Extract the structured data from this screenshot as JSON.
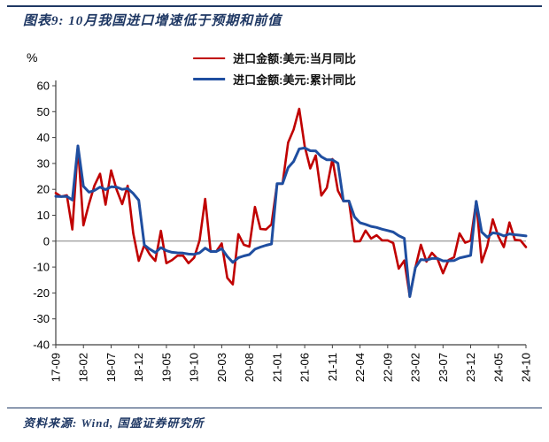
{
  "title": "图表9: 10月我国进口增速低于预期和前值",
  "source": "资料来源: Wind, 国盛证券研究所",
  "colors": {
    "accent_navy": "#1f3864",
    "red_line": "#c00000",
    "blue_line": "#1f4ea0",
    "zero_line": "#808080",
    "axis": "#404040"
  },
  "chart_data": {
    "type": "line",
    "title": "图表9: 10月我国进口增速低于预期和前值",
    "xlabel": "",
    "ylabel": "%",
    "ylim": [
      -40,
      60
    ],
    "ytick_step": 10,
    "grid": "zero-line-only",
    "legend_position": "top-center",
    "xtick_labels": [
      "17-09",
      "18-02",
      "18-07",
      "18-12",
      "19-05",
      "19-10",
      "20-03",
      "20-08",
      "21-01",
      "21-06",
      "21-11",
      "22-04",
      "22-09",
      "23-02",
      "23-07",
      "23-12",
      "24-05",
      "24-10"
    ],
    "x_months": [
      "17-09",
      "17-10",
      "17-11",
      "17-12",
      "18-01",
      "18-02",
      "18-03",
      "18-04",
      "18-05",
      "18-06",
      "18-07",
      "18-08",
      "18-09",
      "18-10",
      "18-11",
      "18-12",
      "19-01",
      "19-02",
      "19-03",
      "19-04",
      "19-05",
      "19-06",
      "19-07",
      "19-08",
      "19-09",
      "19-10",
      "19-11",
      "19-12",
      "20-01",
      "20-02",
      "20-03",
      "20-04",
      "20-05",
      "20-06",
      "20-07",
      "20-08",
      "20-09",
      "20-10",
      "20-11",
      "20-12",
      "21-01",
      "21-02",
      "21-03",
      "21-04",
      "21-05",
      "21-06",
      "21-07",
      "21-08",
      "21-09",
      "21-10",
      "21-11",
      "21-12",
      "22-01",
      "22-02",
      "22-03",
      "22-04",
      "22-05",
      "22-06",
      "22-07",
      "22-08",
      "22-09",
      "22-10",
      "22-11",
      "22-12",
      "23-01",
      "23-02",
      "23-03",
      "23-04",
      "23-05",
      "23-06",
      "23-07",
      "23-08",
      "23-09",
      "23-10",
      "23-11",
      "23-12",
      "24-01",
      "24-02",
      "24-03",
      "24-04",
      "24-05",
      "24-06",
      "24-07",
      "24-08",
      "24-09",
      "24-10"
    ],
    "series": [
      {
        "name": "进口金额:美元:当月同比",
        "color": "#c00000",
        "width": 2.6,
        "values": [
          18.6,
          17.2,
          17.7,
          4.5,
          36.8,
          6.1,
          14.4,
          21.5,
          26.0,
          14.1,
          27.3,
          19.9,
          14.3,
          21.4,
          3.0,
          -7.6,
          -1.5,
          -5.2,
          -7.6,
          4.0,
          -8.5,
          -7.3,
          -5.6,
          -5.6,
          -8.5,
          -6.4,
          0.3,
          16.3,
          -4.0,
          -4.0,
          -0.9,
          -14.2,
          -16.7,
          2.7,
          -1.4,
          -2.1,
          13.2,
          4.7,
          4.5,
          6.5,
          22.2,
          22.2,
          38.1,
          43.1,
          51.1,
          36.7,
          28.1,
          33.1,
          17.6,
          20.6,
          31.7,
          19.5,
          15.5,
          15.5,
          -0.1,
          0.0,
          4.1,
          1.0,
          2.3,
          0.3,
          0.3,
          -0.7,
          -10.6,
          -7.5,
          -21.4,
          -10.2,
          -1.4,
          -7.9,
          -4.5,
          -6.8,
          -12.4,
          -7.3,
          -6.2,
          3.0,
          -0.6,
          0.2,
          15.4,
          -8.2,
          -1.9,
          8.4,
          1.8,
          -2.3,
          7.2,
          0.5,
          0.3,
          -2.3
        ]
      },
      {
        "name": "进口金额:美元:累计同比",
        "color": "#1f4ea0",
        "width": 3,
        "values": [
          17.3,
          17.2,
          17.3,
          15.9,
          36.8,
          21.2,
          18.9,
          19.6,
          20.9,
          19.9,
          21.0,
          20.9,
          20.0,
          20.3,
          18.4,
          15.8,
          -1.5,
          -3.1,
          -4.4,
          -2.5,
          -3.7,
          -4.3,
          -4.5,
          -4.6,
          -5.0,
          -5.1,
          -4.5,
          -2.7,
          -4.0,
          -4.0,
          -2.9,
          -5.9,
          -8.2,
          -6.4,
          -5.7,
          -5.2,
          -3.1,
          -2.3,
          -1.6,
          -1.1,
          22.2,
          22.2,
          28.4,
          30.8,
          35.6,
          36.0,
          34.9,
          34.8,
          32.6,
          31.4,
          31.4,
          30.1,
          15.5,
          15.5,
          9.4,
          7.1,
          6.5,
          5.7,
          5.3,
          4.6,
          4.1,
          3.5,
          2.1,
          1.1,
          -21.4,
          -10.2,
          -7.1,
          -7.3,
          -6.7,
          -6.7,
          -7.6,
          -7.6,
          -7.5,
          -6.5,
          -6.0,
          -5.5,
          15.4,
          3.5,
          1.5,
          3.2,
          2.9,
          2.0,
          2.8,
          2.5,
          2.3,
          2.0
        ]
      }
    ]
  }
}
